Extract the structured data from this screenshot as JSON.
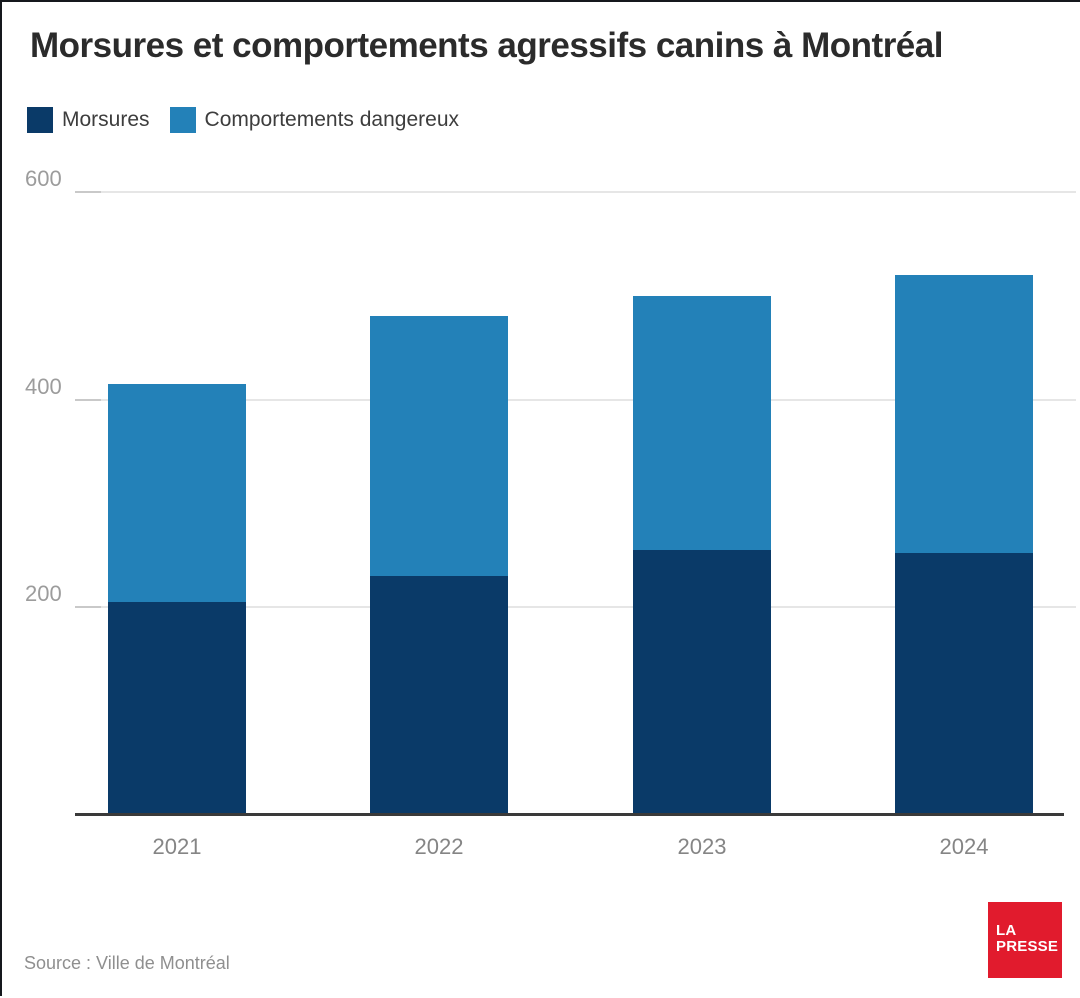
{
  "page": {
    "title": "Morsures et comportements agressifs canins à Montréal"
  },
  "legend": {
    "items": [
      {
        "label": "Morsures",
        "color": "#0a3a68"
      },
      {
        "label": "Comportements dangereux",
        "color": "#2381b8"
      }
    ]
  },
  "chart_data": {
    "type": "bar",
    "stacked": true,
    "title": "Morsures et comportements agressifs canins à Montréal",
    "categories": [
      "2021",
      "2022",
      "2023",
      "2024"
    ],
    "series": [
      {
        "name": "Morsures",
        "color": "#0a3a68",
        "values": [
          205,
          230,
          255,
          252
        ]
      },
      {
        "name": "Comportements dangereux",
        "color": "#2381b8",
        "values": [
          210,
          250,
          245,
          268
        ]
      }
    ],
    "totals": [
      415,
      480,
      500,
      520
    ],
    "xlabel": "",
    "ylabel": "",
    "ylim": [
      0,
      600
    ],
    "yticks": [
      200,
      400,
      600
    ],
    "grid": true,
    "legend_position": "top-left",
    "colors": {
      "gridline": "#e6e6e6",
      "axis_line": "#3a3a3a",
      "tick_label": "#9c9c9c",
      "category_label": "#858585"
    }
  },
  "footer": {
    "source": "Source : Ville de Montréal",
    "logo": {
      "line1": "LA",
      "line2": "PRESSE",
      "background": "#e11b2d"
    }
  }
}
